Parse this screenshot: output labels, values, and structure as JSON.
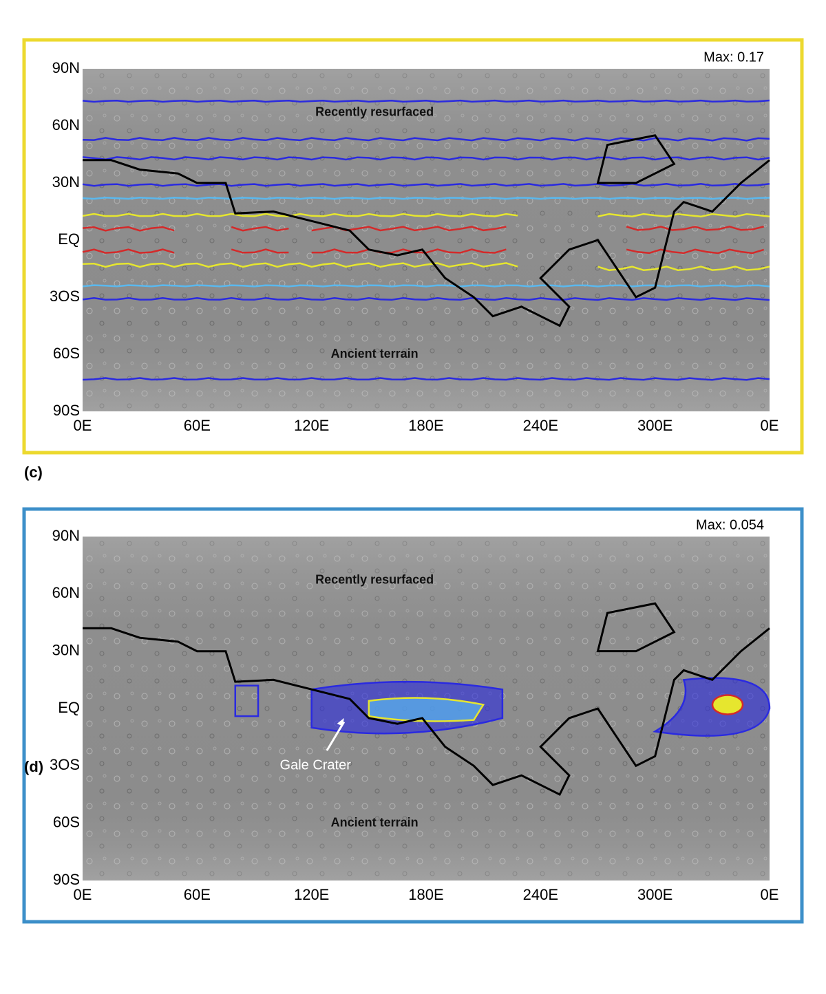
{
  "panels": [
    {
      "label": "(c)",
      "max": "Max: 0.17",
      "annotations": [
        "Recently resurfaced",
        "Ancient terrain"
      ],
      "lat_labels": [
        "90N",
        "60N",
        "30N",
        "EQ",
        "3OS",
        "60S",
        "90S"
      ],
      "lon_labels": [
        "0E",
        "60E",
        "120E",
        "180E",
        "240E",
        "300E",
        "0E"
      ]
    },
    {
      "label": "(d)",
      "max": "Max: 0.054",
      "annotations": [
        "Recently resurfaced",
        "Ancient terrain",
        "Gale Crater"
      ],
      "lat_labels": [
        "90N",
        "60N",
        "30N",
        "EQ",
        "3OS",
        "60S",
        "90S"
      ],
      "lon_labels": [
        "0E",
        "60E",
        "120E",
        "180E",
        "240E",
        "300E",
        "0E"
      ]
    }
  ]
}
